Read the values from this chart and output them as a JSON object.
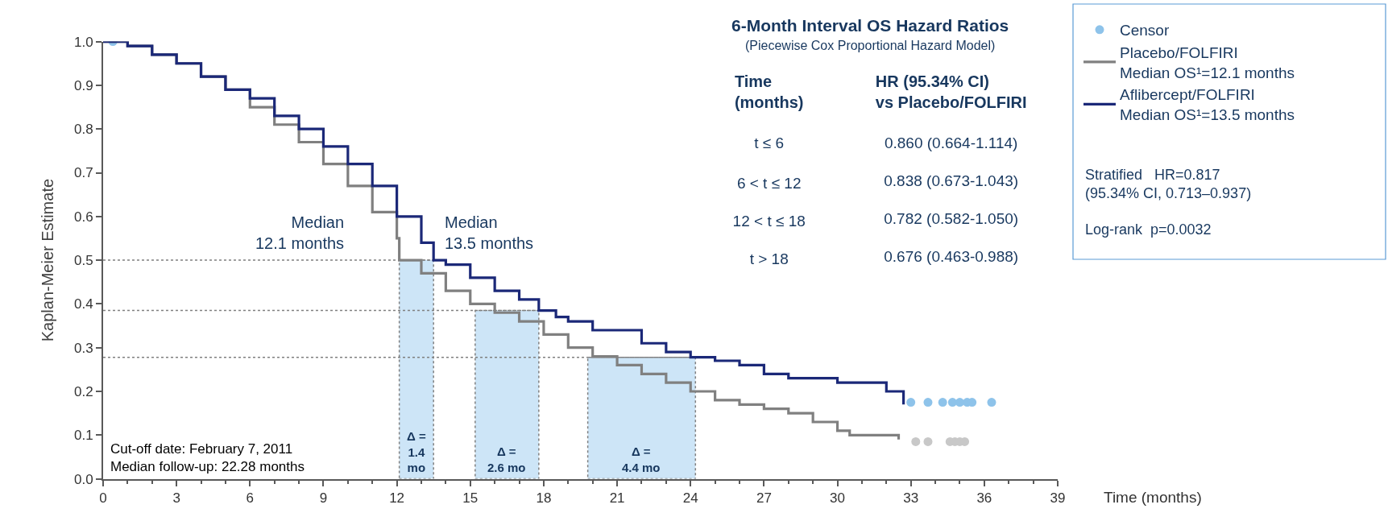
{
  "chart_data": [
    {
      "type": "step",
      "ylabel": "Kaplan-Meier Estimate",
      "xlabel": "Time (months)",
      "xlim": [
        0,
        39
      ],
      "xticks": [
        0,
        3,
        6,
        9,
        12,
        15,
        18,
        21,
        24,
        27,
        30,
        33,
        36,
        39
      ],
      "ylim": [
        0,
        1.0
      ],
      "yticks": [
        {
          "value": 0,
          "label": "0.0"
        },
        0.1,
        0.2,
        0.3,
        0.4,
        0.5,
        0.6,
        0.7,
        0.8,
        0.9,
        {
          "value": 1,
          "label": "1.0"
        }
      ],
      "grid": false,
      "legend": "top right",
      "line_style": "solid",
      "series": [
        {
          "name": "Censor",
          "type": "scatter",
          "x": [
            0.4,
            33.0,
            33.7,
            34.3,
            34.7,
            35.0,
            35.3,
            35.5,
            36.3,
            33.2,
            33.7,
            34.6,
            34.8,
            35.0,
            35.2
          ],
          "values": [
            1.0,
            0.175,
            0.175,
            0.175,
            0.175,
            0.175,
            0.175,
            0.175,
            0.175,
            0.085,
            0.085,
            0.085,
            0.085,
            0.085,
            0.085
          ],
          "colors": [
            "#8ec3ea",
            "#8ec3ea",
            "#8ec3ea",
            "#8ec3ea",
            "#8ec3ea",
            "#8ec3ea",
            "#8ec3ea",
            "#8ec3ea",
            "#8ec3ea",
            "#c8c8c8",
            "#c8c8c8",
            "#c8c8c8",
            "#c8c8c8",
            "#c8c8c8",
            "#c8c8c8"
          ]
        },
        {
          "name": "Placebo/FOLFIRI\nMedian OS¹=12.1 months",
          "color": "#808080",
          "x": [
            0,
            1,
            2,
            3,
            4,
            5,
            6,
            7,
            8,
            9,
            10,
            11,
            12,
            12.1,
            13,
            14,
            15,
            16,
            17,
            18,
            19,
            20,
            21,
            22,
            23,
            24,
            25,
            26,
            27,
            28,
            29,
            30,
            30.5,
            32,
            32.5
          ],
          "values": [
            1.0,
            0.99,
            0.97,
            0.95,
            0.92,
            0.89,
            0.85,
            0.81,
            0.77,
            0.72,
            0.67,
            0.61,
            0.55,
            0.5,
            0.47,
            0.43,
            0.4,
            0.38,
            0.36,
            0.33,
            0.3,
            0.28,
            0.26,
            0.24,
            0.22,
            0.2,
            0.18,
            0.17,
            0.16,
            0.15,
            0.13,
            0.11,
            0.1,
            0.1,
            0.09
          ]
        },
        {
          "name": "Aflibercept/FOLFIRI\nMedian OS¹=13.5 months",
          "color": "#1b2878",
          "x": [
            0,
            1,
            2,
            3,
            4,
            5,
            6,
            7,
            8,
            9,
            10,
            11,
            12,
            13,
            13.5,
            14,
            15,
            16,
            17,
            17.8,
            18.5,
            19,
            20,
            21,
            22,
            23,
            24,
            25,
            26,
            27,
            28,
            29,
            30,
            31,
            32,
            32.7
          ],
          "values": [
            1.0,
            0.99,
            0.97,
            0.95,
            0.92,
            0.89,
            0.87,
            0.83,
            0.8,
            0.76,
            0.72,
            0.67,
            0.6,
            0.54,
            0.5,
            0.49,
            0.46,
            0.43,
            0.41,
            0.385,
            0.37,
            0.36,
            0.34,
            0.34,
            0.31,
            0.29,
            0.278,
            0.27,
            0.26,
            0.24,
            0.23,
            0.23,
            0.22,
            0.22,
            0.2,
            0.17
          ]
        }
      ],
      "ref_lines": [
        {
          "axis": "y",
          "value": 0.5,
          "line_style": "dotted",
          "color": "#808080"
        },
        {
          "axis": "y",
          "value": 0.385,
          "line_style": "dotted",
          "color": "#808080"
        },
        {
          "axis": "y",
          "value": 0.278,
          "line_style": "dotted",
          "color": "#808080"
        }
      ],
      "bands": [
        {
          "axis": "x",
          "from": 12.1,
          "to": 13.5,
          "label": "Δ =\n1.4\nmo",
          "color": "#cde5f7"
        },
        {
          "axis": "x",
          "from": 15.2,
          "to": 17.8,
          "label": "Δ =\n2.6 mo",
          "color": "#cde5f7"
        },
        {
          "axis": "x",
          "from": 19.8,
          "to": 24.2,
          "label": "Δ =\n4.4 mo",
          "color": "#cde5f7"
        }
      ],
      "annotations": [
        "Median\n12.1 months",
        "Median\n13.5 months",
        "Cut-off date: February 7, 2011\nMedian follow-up: 22.28 months",
        "Stratified   HR=0.817\n(95.34% CI, 0.713–0.937)",
        "Log-rank  p=0.0032"
      ]
    },
    {
      "type": "other",
      "title": "6-Month Interval OS Hazard Ratios",
      "subtitle": "(Piecewise Cox Proportional Hazard Model)",
      "annotations": [
        "Time\n(months)",
        "HR (95.34% CI)\nvs Placebo/FOLFIRI",
        "t ≤ 6",
        "0.860 (0.664-1.114)",
        "6 < t ≤ 12",
        "0.838 (0.673-1.043)",
        "12 < t ≤ 18",
        "0.782 (0.582-1.050)",
        "t > 18",
        "0.676 (0.463-0.988)"
      ]
    }
  ]
}
